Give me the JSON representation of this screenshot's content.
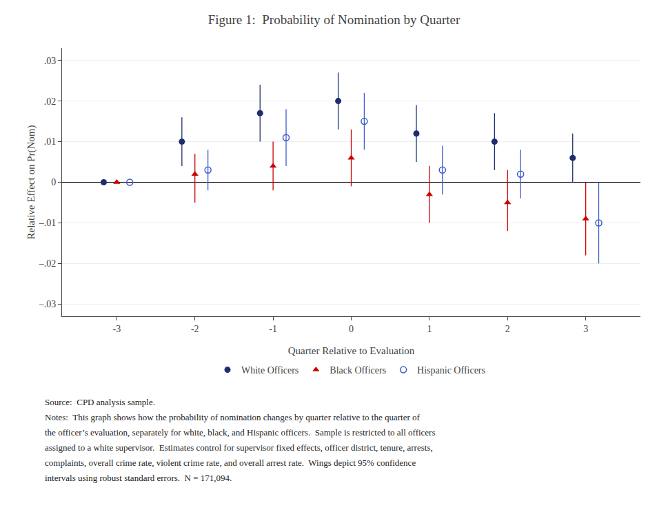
{
  "chart_data": {
    "type": "scatter",
    "title": "Figure 1:  Probability of Nomination by Quarter",
    "xlabel": "Quarter Relative to Evaluation",
    "ylabel": "Relative Effect on Pr(Nom)",
    "x": [
      -3,
      -2,
      -1,
      0,
      1,
      2,
      3
    ],
    "series": [
      {
        "name": "White Officers",
        "color": "#1f2d6e",
        "marker": "circle",
        "values": [
          0.0,
          0.01,
          0.017,
          0.02,
          0.012,
          0.01,
          0.006
        ],
        "yerr_lo": [
          0.0,
          0.006,
          0.007,
          0.007,
          0.007,
          0.007,
          0.006
        ],
        "yerr_hi": [
          0.0,
          0.006,
          0.007,
          0.007,
          0.007,
          0.007,
          0.006
        ]
      },
      {
        "name": "Black Officers",
        "color": "#cc0000",
        "marker": "triangle-up",
        "values": [
          0.0,
          0.002,
          0.004,
          0.006,
          -0.003,
          -0.005,
          -0.009
        ],
        "yerr_lo": [
          0.0,
          0.007,
          0.006,
          0.007,
          0.007,
          0.007,
          0.009
        ],
        "yerr_hi": [
          0.0,
          0.005,
          0.006,
          0.007,
          0.007,
          0.008,
          0.009
        ]
      },
      {
        "name": "Hispanic Officers",
        "color": "#3a5acd",
        "marker": "circle-open",
        "values": [
          0.0,
          0.003,
          0.011,
          0.015,
          0.003,
          0.002,
          -0.01
        ],
        "yerr_lo": [
          0.0,
          0.005,
          0.007,
          0.007,
          0.006,
          0.006,
          0.01
        ],
        "yerr_hi": [
          0.0,
          0.005,
          0.007,
          0.007,
          0.006,
          0.006,
          0.01
        ]
      }
    ],
    "xlim": [
      -3.7,
      3.7
    ],
    "ylim": [
      -0.033,
      0.033
    ],
    "xticks": [
      -3,
      -2,
      -1,
      0,
      1,
      2,
      3
    ],
    "yticks": [
      {
        "value": -0.03,
        "label": "–.03"
      },
      {
        "value": -0.02,
        "label": "–.02"
      },
      {
        "value": -0.01,
        "label": "–.01"
      },
      0,
      {
        "value": 0.01,
        "label": ".01"
      },
      {
        "value": 0.02,
        "label": ".02"
      },
      {
        "value": 0.03,
        "label": ".03"
      }
    ],
    "grid": "y",
    "legend": "bottom",
    "annotations": [
      "Source:  CPD analysis sample.",
      "Notes:  This graph shows how the probability of nomination changes by quarter relative to the quarter of",
      "the officer’s evaluation, separately for white, black, and Hispanic officers.  Sample is restricted to all officers",
      "assigned to a white supervisor.  Estimates control for supervisor fixed effects, officer district, tenure, arrests,",
      "complaints, overall crime rate, violent crime rate, and overall arrest rate.  Wings depict 95% confidence",
      "intervals using robust standard errors.  N = 171,094."
    ]
  }
}
